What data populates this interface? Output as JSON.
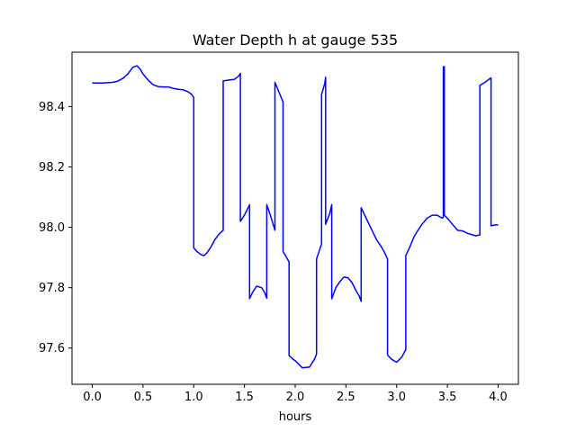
{
  "chart_data": {
    "type": "line",
    "title": "Water Depth h at gauge 535",
    "xlabel": "hours",
    "ylabel": "",
    "xlim": [
      -0.2,
      4.2
    ],
    "ylim": [
      97.48,
      98.58
    ],
    "grid": false,
    "x_ticks": [
      0.0,
      0.5,
      1.0,
      1.5,
      2.0,
      2.5,
      3.0,
      3.5,
      4.0
    ],
    "x_tick_labels": [
      "0.0",
      "0.5",
      "1.0",
      "1.5",
      "2.0",
      "2.5",
      "3.0",
      "3.5",
      "4.0"
    ],
    "y_ticks": [
      97.6,
      97.8,
      98.0,
      98.2,
      98.4
    ],
    "y_tick_labels": [
      "97.6",
      "97.8",
      "98.0",
      "98.2",
      "98.4"
    ],
    "series": [
      {
        "name": "",
        "color": "#0000ff",
        "points": [
          [
            0.0,
            98.478
          ],
          [
            0.1,
            98.478
          ],
          [
            0.2,
            98.48
          ],
          [
            0.25,
            98.484
          ],
          [
            0.3,
            98.493
          ],
          [
            0.35,
            98.508
          ],
          [
            0.4,
            98.53
          ],
          [
            0.44,
            98.535
          ],
          [
            0.47,
            98.525
          ],
          [
            0.5,
            98.508
          ],
          [
            0.55,
            98.488
          ],
          [
            0.6,
            98.472
          ],
          [
            0.65,
            98.466
          ],
          [
            0.7,
            98.465
          ],
          [
            0.75,
            98.465
          ],
          [
            0.8,
            98.46
          ],
          [
            0.85,
            98.457
          ],
          [
            0.9,
            98.455
          ],
          [
            0.95,
            98.448
          ],
          [
            0.98,
            98.44
          ],
          [
            1.0,
            98.43
          ],
          [
            1.0,
            97.932
          ],
          [
            1.03,
            97.92
          ],
          [
            1.07,
            97.91
          ],
          [
            1.1,
            97.906
          ],
          [
            1.13,
            97.915
          ],
          [
            1.17,
            97.935
          ],
          [
            1.21,
            97.96
          ],
          [
            1.25,
            97.978
          ],
          [
            1.29,
            97.99
          ],
          [
            1.29,
            98.485
          ],
          [
            1.35,
            98.488
          ],
          [
            1.4,
            98.49
          ],
          [
            1.44,
            98.5
          ],
          [
            1.46,
            98.51
          ],
          [
            1.46,
            98.02
          ],
          [
            1.5,
            98.04
          ],
          [
            1.55,
            98.075
          ],
          [
            1.55,
            97.764
          ],
          [
            1.58,
            97.785
          ],
          [
            1.62,
            97.805
          ],
          [
            1.67,
            97.8
          ],
          [
            1.7,
            97.783
          ],
          [
            1.72,
            97.765
          ],
          [
            1.72,
            98.075
          ],
          [
            1.76,
            98.035
          ],
          [
            1.8,
            97.99
          ],
          [
            1.8,
            98.48
          ],
          [
            1.85,
            98.44
          ],
          [
            1.88,
            98.415
          ],
          [
            1.88,
            97.92
          ],
          [
            1.92,
            97.897
          ],
          [
            1.94,
            97.885
          ],
          [
            1.94,
            97.575
          ],
          [
            1.98,
            97.563
          ],
          [
            2.0,
            97.558
          ],
          [
            2.04,
            97.545
          ],
          [
            2.07,
            97.535
          ],
          [
            2.14,
            97.537
          ],
          [
            2.19,
            97.563
          ],
          [
            2.21,
            97.58
          ],
          [
            2.21,
            97.895
          ],
          [
            2.26,
            97.945
          ],
          [
            2.26,
            98.44
          ],
          [
            2.29,
            98.475
          ],
          [
            2.3,
            98.497
          ],
          [
            2.3,
            98.01
          ],
          [
            2.34,
            98.045
          ],
          [
            2.36,
            98.075
          ],
          [
            2.36,
            97.763
          ],
          [
            2.4,
            97.8
          ],
          [
            2.44,
            97.82
          ],
          [
            2.48,
            97.835
          ],
          [
            2.52,
            97.833
          ],
          [
            2.56,
            97.817
          ],
          [
            2.6,
            97.79
          ],
          [
            2.63,
            97.773
          ],
          [
            2.65,
            97.755
          ],
          [
            2.65,
            98.065
          ],
          [
            2.7,
            98.03
          ],
          [
            2.75,
            97.995
          ],
          [
            2.8,
            97.96
          ],
          [
            2.85,
            97.935
          ],
          [
            2.88,
            97.917
          ],
          [
            2.91,
            97.895
          ],
          [
            2.91,
            97.577
          ],
          [
            2.95,
            97.563
          ],
          [
            3.0,
            97.553
          ],
          [
            3.05,
            97.57
          ],
          [
            3.09,
            97.595
          ],
          [
            3.09,
            97.907
          ],
          [
            3.13,
            97.935
          ],
          [
            3.17,
            97.968
          ],
          [
            3.2,
            97.985
          ],
          [
            3.25,
            98.01
          ],
          [
            3.3,
            98.03
          ],
          [
            3.35,
            98.04
          ],
          [
            3.4,
            98.04
          ],
          [
            3.45,
            98.03
          ],
          [
            3.46,
            98.035
          ],
          [
            3.46,
            98.532
          ],
          [
            3.47,
            98.532
          ],
          [
            3.47,
            98.04
          ],
          [
            3.5,
            98.03
          ],
          [
            3.55,
            98.01
          ],
          [
            3.6,
            97.99
          ],
          [
            3.65,
            97.988
          ],
          [
            3.7,
            97.98
          ],
          [
            3.75,
            97.975
          ],
          [
            3.78,
            97.972
          ],
          [
            3.82,
            97.975
          ],
          [
            3.82,
            98.47
          ],
          [
            3.87,
            98.48
          ],
          [
            3.93,
            98.495
          ],
          [
            3.93,
            98.005
          ],
          [
            3.97,
            98.008
          ],
          [
            4.0,
            98.008
          ]
        ]
      }
    ]
  }
}
